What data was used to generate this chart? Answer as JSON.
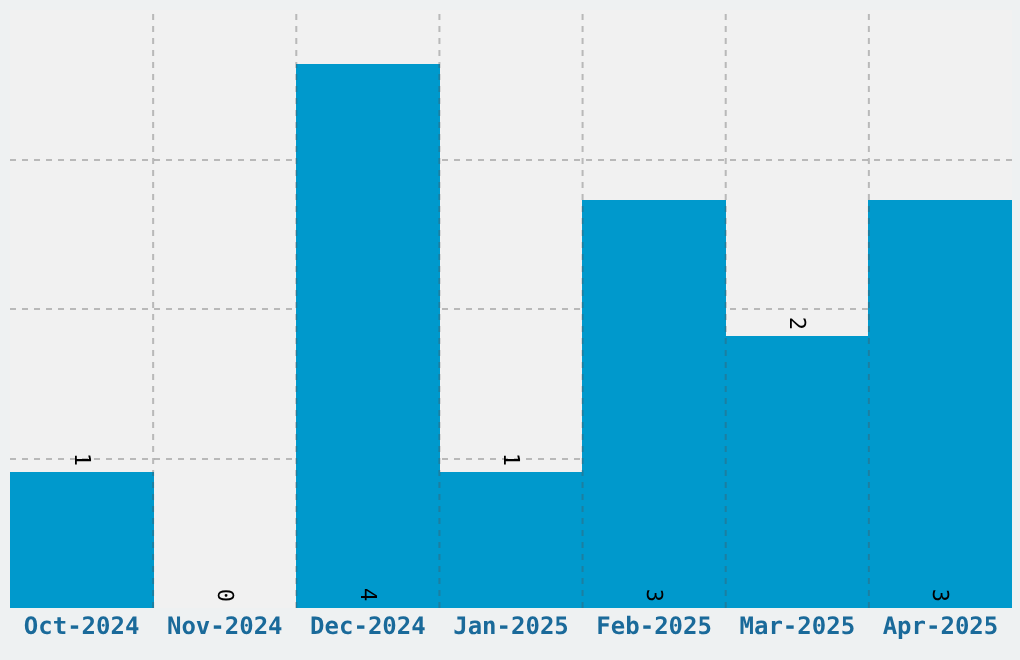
{
  "chart_data": {
    "type": "bar",
    "categories": [
      "Oct-2024",
      "Nov-2024",
      "Dec-2024",
      "Jan-2025",
      "Feb-2025",
      "Mar-2025",
      "Apr-2025"
    ],
    "values": [
      1,
      0,
      4,
      1,
      3,
      2,
      3
    ],
    "color": "#0099cc",
    "ylim": [
      0,
      4.4
    ],
    "yticks": [
      {
        "value": 1.1,
        "label": null
      },
      {
        "value": 2.2,
        "label": null
      },
      {
        "value": 3.3,
        "label": null
      }
    ],
    "grid": true,
    "data_labels": true,
    "tick_labels": "x"
  }
}
